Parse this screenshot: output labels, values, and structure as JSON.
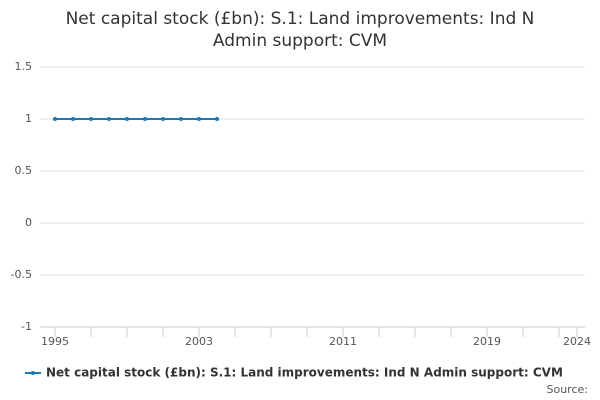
{
  "chart_data": {
    "type": "line",
    "title_lines": [
      "Net capital stock (£bn): S.1: Land improvements: Ind N",
      "Admin support: CVM"
    ],
    "x": [
      1995,
      1996,
      1997,
      1998,
      1999,
      2000,
      2001,
      2002,
      2003,
      2004
    ],
    "series": [
      {
        "name": "Net capital stock (£bn): S.1: Land improvements: Ind N Admin support: CVM",
        "color": "#1f77b4",
        "values": [
          1,
          1,
          1,
          1,
          1,
          1,
          1,
          1,
          1,
          1
        ]
      }
    ],
    "xlim": [
      1995,
      2024
    ],
    "xticks": [
      1995,
      2003,
      2011,
      2019,
      2024
    ],
    "x_minor_ticks": [
      1997,
      1999,
      2001,
      2005,
      2007,
      2009,
      2013,
      2015,
      2017,
      2021,
      2023
    ],
    "ylim": [
      -1,
      1.5
    ],
    "yticks": [
      -1,
      -0.5,
      0,
      0.5,
      1,
      1.5
    ],
    "grid": true,
    "source": "Source:"
  }
}
